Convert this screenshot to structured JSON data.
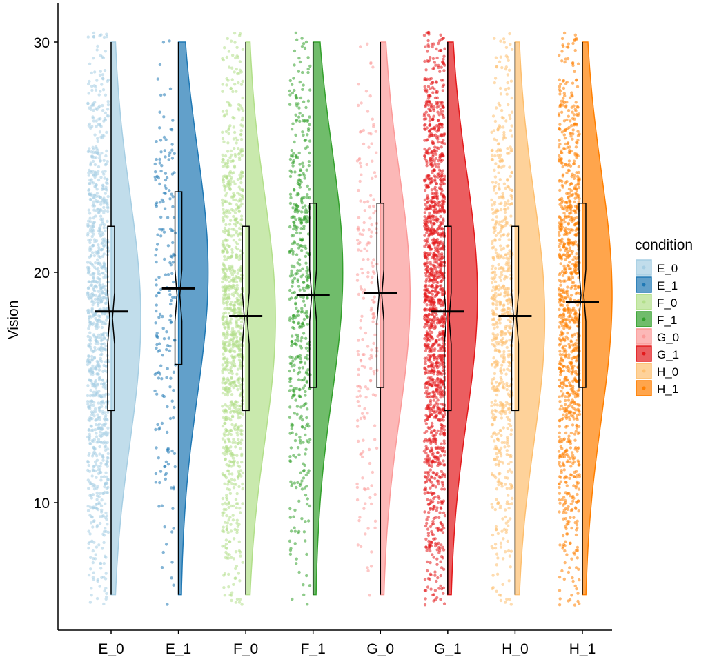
{
  "chart_data": {
    "type": "raincloud",
    "ylabel": "Vision",
    "xlabel": "",
    "ylim": [
      4.5,
      31.5
    ],
    "y_ticks": [
      10,
      20,
      30
    ],
    "y_tick_labels": [
      "10",
      "20",
      "30"
    ],
    "legend": {
      "title": "condition",
      "position": "right"
    },
    "grid": false,
    "categories": [
      "E_0",
      "E_1",
      "F_0",
      "F_1",
      "G_0",
      "G_1",
      "H_0",
      "H_1"
    ],
    "series": [
      {
        "name": "E_0",
        "color": "#a6cee3",
        "n_points": 1000,
        "min": 6,
        "q1": 14,
        "median": 18,
        "mean": 18.3,
        "q3": 22,
        "max": 30,
        "density_peak": 18
      },
      {
        "name": "E_1",
        "color": "#1f78b4",
        "n_points": 200,
        "min": 6,
        "q1": 16,
        "median": 19,
        "mean": 19.3,
        "q3": 23.5,
        "max": 30,
        "density_peak": 20
      },
      {
        "name": "F_0",
        "color": "#b2df8a",
        "n_points": 1000,
        "min": 6,
        "q1": 14,
        "median": 18,
        "mean": 18.1,
        "q3": 22,
        "max": 30,
        "density_peak": 18
      },
      {
        "name": "F_1",
        "color": "#33a02c",
        "n_points": 500,
        "min": 6,
        "q1": 15,
        "median": 19,
        "mean": 19.0,
        "q3": 23,
        "max": 30,
        "density_peak": 20
      },
      {
        "name": "G_0",
        "color": "#fb9a99",
        "n_points": 200,
        "min": 6,
        "q1": 15,
        "median": 19,
        "mean": 19.1,
        "q3": 23,
        "max": 30,
        "density_peak": 19
      },
      {
        "name": "G_1",
        "color": "#e31a1c",
        "n_points": 1500,
        "min": 6,
        "q1": 14,
        "median": 18,
        "mean": 18.3,
        "q3": 22,
        "max": 30,
        "density_peak": 19
      },
      {
        "name": "H_0",
        "color": "#fdbf6f",
        "n_points": 700,
        "min": 6,
        "q1": 14,
        "median": 18,
        "mean": 18.1,
        "q3": 22,
        "max": 30,
        "density_peak": 18
      },
      {
        "name": "H_1",
        "color": "#ff7f00",
        "n_points": 1000,
        "min": 6,
        "q1": 15,
        "median": 19,
        "mean": 18.7,
        "q3": 23,
        "max": 30,
        "density_peak": 19
      }
    ]
  }
}
